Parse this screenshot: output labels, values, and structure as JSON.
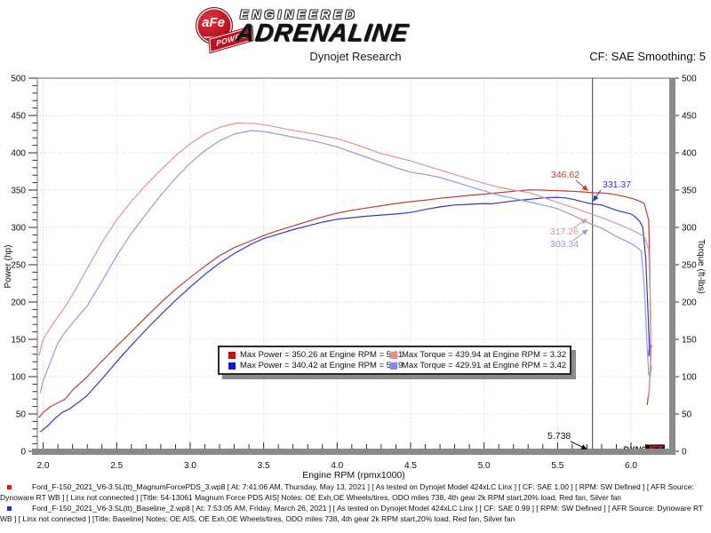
{
  "header": {
    "brand": {
      "badge_text": "aFe",
      "badge_sub": "POWER",
      "line1": "ENGINEERED",
      "line2": "ADRENALINE"
    },
    "subtitle": "Dynojet Research",
    "smoothing": "CF: SAE Smoothing: 5"
  },
  "chart_data": {
    "type": "line",
    "xlabel": "Engine RPM (rpmx1000)",
    "ylabel": "Power (hp)",
    "ylabel_right": "Torque (ft-lbs)",
    "xlim": [
      1.96,
      6.26
    ],
    "ylim": [
      0,
      500
    ],
    "x_tick_step": 0.5,
    "x_minor_step": 0.1,
    "y_tick_step": 50,
    "y_minor_step": 10,
    "grid": true,
    "legend_position": "bottom-center",
    "cursor_rpm": 5.738,
    "watermark": {
      "part1": "DYNO",
      "part2": "JET"
    },
    "series": [
      {
        "id": "afe-power",
        "name": "Max Power = 350.26 at Engine RPM = 5.31",
        "color": "#c23b35",
        "swatch": "#e00000",
        "max_value": 350.26,
        "max_rpm": 5.31,
        "points": [
          [
            1.97,
            45
          ],
          [
            2.0,
            52
          ],
          [
            2.05,
            60
          ],
          [
            2.1,
            65
          ],
          [
            2.15,
            70
          ],
          [
            2.2,
            82
          ],
          [
            2.3,
            100
          ],
          [
            2.4,
            121
          ],
          [
            2.5,
            141
          ],
          [
            2.6,
            160
          ],
          [
            2.7,
            180
          ],
          [
            2.8,
            199
          ],
          [
            2.9,
            217
          ],
          [
            3.0,
            233
          ],
          [
            3.1,
            248
          ],
          [
            3.2,
            262
          ],
          [
            3.3,
            273
          ],
          [
            3.4,
            281
          ],
          [
            3.5,
            289
          ],
          [
            3.6,
            296
          ],
          [
            3.7,
            302
          ],
          [
            3.8,
            308
          ],
          [
            3.9,
            314
          ],
          [
            4.0,
            319
          ],
          [
            4.1,
            323
          ],
          [
            4.2,
            326
          ],
          [
            4.3,
            329
          ],
          [
            4.4,
            332
          ],
          [
            4.5,
            334.5
          ],
          [
            4.6,
            336.5
          ],
          [
            4.7,
            339
          ],
          [
            4.8,
            341
          ],
          [
            4.9,
            343
          ],
          [
            5.0,
            344.5
          ],
          [
            5.1,
            346.5
          ],
          [
            5.2,
            348.5
          ],
          [
            5.31,
            350.3
          ],
          [
            5.4,
            350
          ],
          [
            5.5,
            349.2
          ],
          [
            5.6,
            348.4
          ],
          [
            5.7,
            347.2
          ],
          [
            5.74,
            346.6
          ],
          [
            5.8,
            346.2
          ],
          [
            5.85,
            345.3
          ],
          [
            5.9,
            343.7
          ],
          [
            5.95,
            341.5
          ],
          [
            6.0,
            339.2
          ],
          [
            6.05,
            336
          ],
          [
            6.09,
            332
          ],
          [
            6.12,
            310
          ],
          [
            6.13,
            220
          ],
          [
            6.135,
            130
          ],
          [
            6.125,
            85
          ],
          [
            6.11,
            62
          ]
        ]
      },
      {
        "id": "baseline-power",
        "name": "Max Power = 340.42 at Engine RPM = 5.49",
        "color": "#3338bd",
        "swatch": "#1515dd",
        "max_value": 340.42,
        "max_rpm": 5.49,
        "points": [
          [
            1.98,
            26
          ],
          [
            2.03,
            34
          ],
          [
            2.08,
            44
          ],
          [
            2.13,
            52
          ],
          [
            2.18,
            57
          ],
          [
            2.25,
            67
          ],
          [
            2.3,
            75
          ],
          [
            2.4,
            97
          ],
          [
            2.5,
            120
          ],
          [
            2.6,
            142
          ],
          [
            2.7,
            163
          ],
          [
            2.8,
            183
          ],
          [
            2.9,
            202
          ],
          [
            3.0,
            220
          ],
          [
            3.1,
            237
          ],
          [
            3.2,
            252
          ],
          [
            3.3,
            265
          ],
          [
            3.42,
            278
          ],
          [
            3.5,
            285
          ],
          [
            3.6,
            291
          ],
          [
            3.7,
            297
          ],
          [
            3.8,
            302
          ],
          [
            3.9,
            307
          ],
          [
            4.0,
            311
          ],
          [
            4.1,
            313
          ],
          [
            4.2,
            315
          ],
          [
            4.3,
            316.5
          ],
          [
            4.4,
            318
          ],
          [
            4.5,
            320
          ],
          [
            4.6,
            324
          ],
          [
            4.7,
            327.5
          ],
          [
            4.8,
            330
          ],
          [
            4.9,
            331
          ],
          [
            5.0,
            332
          ],
          [
            5.05,
            331.5
          ],
          [
            5.1,
            333
          ],
          [
            5.2,
            335.5
          ],
          [
            5.3,
            337.5
          ],
          [
            5.4,
            339.5
          ],
          [
            5.49,
            340.4
          ],
          [
            5.55,
            339.6
          ],
          [
            5.6,
            337.8
          ],
          [
            5.65,
            335.5
          ],
          [
            5.7,
            333
          ],
          [
            5.74,
            331.4
          ],
          [
            5.8,
            330
          ],
          [
            5.85,
            326.5
          ],
          [
            5.9,
            323
          ],
          [
            5.95,
            320.5
          ],
          [
            6.0,
            318
          ],
          [
            6.03,
            314
          ],
          [
            6.06,
            308
          ],
          [
            6.08,
            300
          ],
          [
            6.1,
            260
          ],
          [
            6.115,
            190
          ],
          [
            6.125,
            140
          ],
          [
            6.12,
            128
          ],
          [
            6.13,
            135
          ],
          [
            6.14,
            142
          ]
        ]
      },
      {
        "id": "afe-torque",
        "name": "Max Torque = 439.94 at Engine RPM = 3.32",
        "color": "#dd9693",
        "swatch": "#ef8888",
        "max_value": 439.94,
        "max_rpm": 3.32,
        "points": [
          [
            1.97,
            128
          ],
          [
            2.0,
            150
          ],
          [
            2.05,
            166
          ],
          [
            2.1,
            180
          ],
          [
            2.15,
            194
          ],
          [
            2.2,
            210
          ],
          [
            2.3,
            245
          ],
          [
            2.4,
            280
          ],
          [
            2.5,
            310
          ],
          [
            2.6,
            335
          ],
          [
            2.7,
            357
          ],
          [
            2.8,
            377
          ],
          [
            2.9,
            396
          ],
          [
            3.0,
            412
          ],
          [
            3.1,
            425
          ],
          [
            3.2,
            434
          ],
          [
            3.32,
            439.9
          ],
          [
            3.45,
            439
          ],
          [
            3.55,
            436
          ],
          [
            3.7,
            430
          ],
          [
            3.85,
            425
          ],
          [
            4.0,
            419
          ],
          [
            4.1,
            413
          ],
          [
            4.2,
            406
          ],
          [
            4.3,
            399
          ],
          [
            4.4,
            394
          ],
          [
            4.5,
            389
          ],
          [
            4.6,
            383
          ],
          [
            4.7,
            377
          ],
          [
            4.8,
            371
          ],
          [
            4.9,
            365
          ],
          [
            5.0,
            359
          ],
          [
            5.1,
            354
          ],
          [
            5.2,
            350
          ],
          [
            5.31,
            346.5
          ],
          [
            5.4,
            340.5
          ],
          [
            5.5,
            333.5
          ],
          [
            5.6,
            327
          ],
          [
            5.7,
            320
          ],
          [
            5.74,
            317.3
          ],
          [
            5.8,
            313
          ],
          [
            5.9,
            305.5
          ],
          [
            6.0,
            297
          ],
          [
            6.05,
            292
          ],
          [
            6.09,
            288
          ],
          [
            6.12,
            270
          ],
          [
            6.135,
            180
          ],
          [
            6.13,
            110
          ],
          [
            6.12,
            72
          ]
        ]
      },
      {
        "id": "baseline-torque",
        "name": "Max Torque = 429.91 at Engine RPM = 3.42",
        "color": "#9599dd",
        "swatch": "#8888ef",
        "max_value": 429.91,
        "max_rpm": 3.42,
        "points": [
          [
            1.98,
            78
          ],
          [
            2.0,
            95
          ],
          [
            2.05,
            120
          ],
          [
            2.1,
            145
          ],
          [
            2.15,
            160
          ],
          [
            2.2,
            172
          ],
          [
            2.3,
            195
          ],
          [
            2.4,
            228
          ],
          [
            2.5,
            262
          ],
          [
            2.6,
            292
          ],
          [
            2.7,
            318
          ],
          [
            2.8,
            343
          ],
          [
            2.9,
            366
          ],
          [
            3.0,
            386
          ],
          [
            3.1,
            403
          ],
          [
            3.2,
            416
          ],
          [
            3.3,
            425
          ],
          [
            3.42,
            429.9
          ],
          [
            3.5,
            428.5
          ],
          [
            3.6,
            425
          ],
          [
            3.7,
            421
          ],
          [
            3.8,
            417.5
          ],
          [
            3.9,
            413
          ],
          [
            4.0,
            408
          ],
          [
            4.1,
            401
          ],
          [
            4.2,
            394
          ],
          [
            4.3,
            387
          ],
          [
            4.4,
            380
          ],
          [
            4.5,
            374
          ],
          [
            4.6,
            371
          ],
          [
            4.7,
            367
          ],
          [
            4.8,
            361
          ],
          [
            4.9,
            355
          ],
          [
            5.0,
            349
          ],
          [
            5.1,
            343
          ],
          [
            5.2,
            339
          ],
          [
            5.3,
            334.5
          ],
          [
            5.4,
            330
          ],
          [
            5.49,
            325.7
          ],
          [
            5.6,
            316.5
          ],
          [
            5.7,
            307
          ],
          [
            5.74,
            303.3
          ],
          [
            5.8,
            299
          ],
          [
            5.9,
            288
          ],
          [
            6.0,
            278.5
          ],
          [
            6.05,
            272
          ],
          [
            6.07,
            268
          ],
          [
            6.09,
            220
          ],
          [
            6.11,
            140
          ],
          [
            6.12,
            103
          ],
          [
            6.13,
            100
          ],
          [
            6.14,
            115
          ]
        ]
      }
    ],
    "annotations": [
      {
        "label": "346.62",
        "color": "#c23b35",
        "text": [
          620,
          200
        ],
        "from": [
          648,
          203
        ],
        "to": [
          662,
          215
        ]
      },
      {
        "label": "331.37",
        "color": "#3338bd",
        "text": [
          678,
          211
        ],
        "from": [
          676,
          214
        ],
        "to": [
          667,
          227
        ]
      },
      {
        "label": "317.26",
        "color": "#dd9693",
        "text": [
          619,
          264
        ],
        "from": [
          645,
          257
        ],
        "to": [
          661,
          246
        ]
      },
      {
        "label": "303.34",
        "color": "#9599dd",
        "text": [
          619,
          278
        ],
        "from": [
          645,
          271
        ],
        "to": [
          662,
          258
        ]
      },
      {
        "label": "5.738",
        "color": "#111111",
        "text": [
          616,
          494
        ],
        "from": [
          642,
          497
        ],
        "to": [
          661,
          506
        ]
      }
    ]
  },
  "legend_order": [
    0,
    2,
    1,
    3
  ],
  "footer": {
    "entries": [
      {
        "bullet_color": "#cc2222",
        "text": "Ford_F-150_2021_V6-3.5L(tt)_MagnumForcePDS_3.wp8 [ At: 7:41:06 AM, Thursday, May 13, 2021 ] [ As tested on Dynojet Model 424xLC Linx ] [ CF: SAE 1.00 ] [ RPM: SW Defined ] [ AFR Source: Dynoware RT WB ] [ Linx not connected ] [Title: 54-13061 Magnum Force PDS AIS]  Notes: OE Exh,OE Wheels/tires, ODO miles 738, 4th gear 2k RPM start,20% load, Red fan, Silver fan"
      },
      {
        "bullet_color": "#2233cc",
        "text": "Ford_F-150_2021_V6-3.5L(tt)_Baseline_2.wp8 [ At: 7:53:05 AM, Friday, March 26, 2021 ] [ As tested on Dynojet Model 424xLC Linx ] [ CF: SAE 0.99 ] [ RPM: SW Defined ] [ AFR Source: Dynoware RT WB ] [ Linx not connected ] [Title: Baseline]  Notes: OE AIS, OE Exh,OE Wheels/tires, ODO miles 738, 4th gear 2k RPM start,20% load, Red fan, Silver fan"
      }
    ]
  }
}
